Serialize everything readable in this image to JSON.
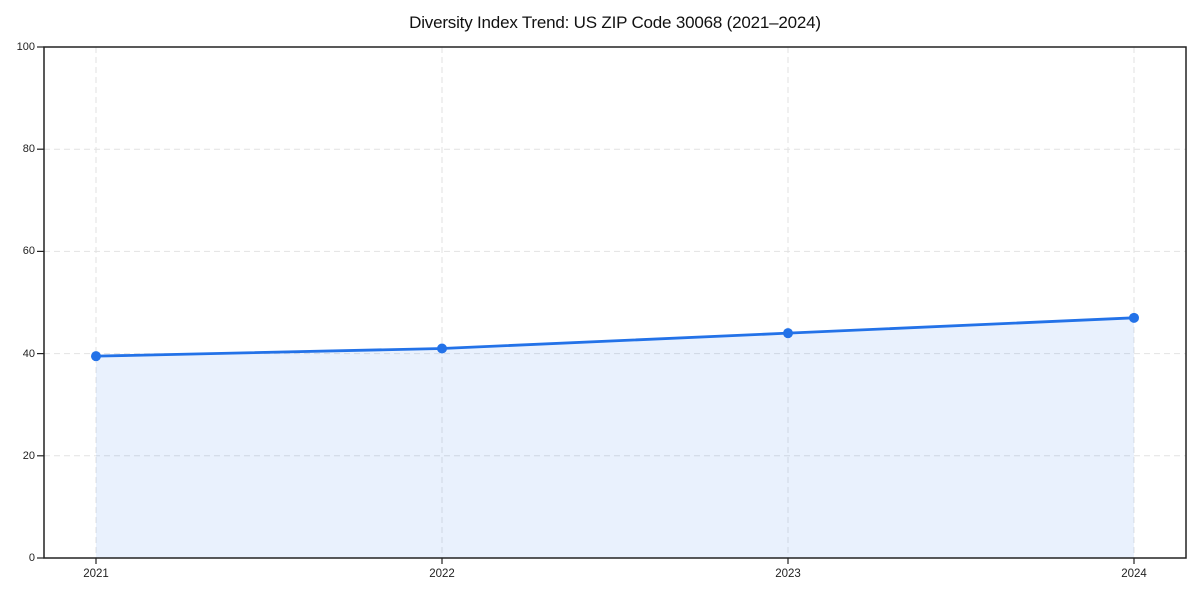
{
  "chart_data": {
    "type": "line",
    "title": "Diversity Index Trend: US ZIP Code 30068 (2021–2024)",
    "categories": [
      "2021",
      "2022",
      "2023",
      "2024"
    ],
    "series": [
      {
        "name": "Diversity Index",
        "values": [
          39.5,
          41,
          44,
          47
        ]
      }
    ],
    "xlabel": "",
    "ylabel": "",
    "ylim": [
      0,
      100
    ],
    "yticks": [
      0,
      20,
      40,
      60,
      80,
      100
    ],
    "grid": true,
    "grid_style": "dashed",
    "area_fill": true,
    "legend": "none",
    "colors": {
      "line": "#2372e8",
      "marker": "#2372e8",
      "fill": "#2372e8",
      "fill_opacity": 0.1,
      "grid": "#e2e2e2",
      "axis": "#222222",
      "tick_label": "#222222",
      "title": "#111111",
      "background": "#ffffff"
    }
  }
}
